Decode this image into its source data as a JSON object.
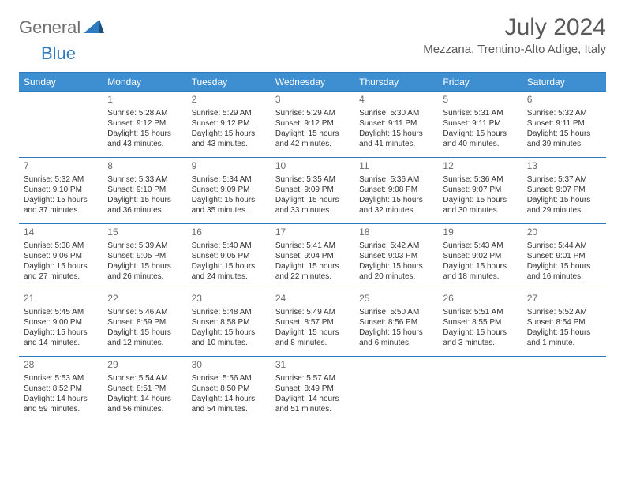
{
  "brand": {
    "part1": "General",
    "part2": "Blue"
  },
  "title": "July 2024",
  "location": "Mezzana, Trentino-Alto Adige, Italy",
  "colors": {
    "header_bg": "#3d8fd1",
    "border": "#2f7bbf",
    "text": "#333333",
    "title": "#5a5a5a",
    "brand_gray": "#6f6f6f",
    "brand_blue": "#2f7bbf",
    "background": "#ffffff"
  },
  "weekdays": [
    "Sunday",
    "Monday",
    "Tuesday",
    "Wednesday",
    "Thursday",
    "Friday",
    "Saturday"
  ],
  "weeks": [
    [
      null,
      {
        "n": "1",
        "sr": "Sunrise: 5:28 AM",
        "ss": "Sunset: 9:12 PM",
        "dl": "Daylight: 15 hours and 43 minutes."
      },
      {
        "n": "2",
        "sr": "Sunrise: 5:29 AM",
        "ss": "Sunset: 9:12 PM",
        "dl": "Daylight: 15 hours and 43 minutes."
      },
      {
        "n": "3",
        "sr": "Sunrise: 5:29 AM",
        "ss": "Sunset: 9:12 PM",
        "dl": "Daylight: 15 hours and 42 minutes."
      },
      {
        "n": "4",
        "sr": "Sunrise: 5:30 AM",
        "ss": "Sunset: 9:11 PM",
        "dl": "Daylight: 15 hours and 41 minutes."
      },
      {
        "n": "5",
        "sr": "Sunrise: 5:31 AM",
        "ss": "Sunset: 9:11 PM",
        "dl": "Daylight: 15 hours and 40 minutes."
      },
      {
        "n": "6",
        "sr": "Sunrise: 5:32 AM",
        "ss": "Sunset: 9:11 PM",
        "dl": "Daylight: 15 hours and 39 minutes."
      }
    ],
    [
      {
        "n": "7",
        "sr": "Sunrise: 5:32 AM",
        "ss": "Sunset: 9:10 PM",
        "dl": "Daylight: 15 hours and 37 minutes."
      },
      {
        "n": "8",
        "sr": "Sunrise: 5:33 AM",
        "ss": "Sunset: 9:10 PM",
        "dl": "Daylight: 15 hours and 36 minutes."
      },
      {
        "n": "9",
        "sr": "Sunrise: 5:34 AM",
        "ss": "Sunset: 9:09 PM",
        "dl": "Daylight: 15 hours and 35 minutes."
      },
      {
        "n": "10",
        "sr": "Sunrise: 5:35 AM",
        "ss": "Sunset: 9:09 PM",
        "dl": "Daylight: 15 hours and 33 minutes."
      },
      {
        "n": "11",
        "sr": "Sunrise: 5:36 AM",
        "ss": "Sunset: 9:08 PM",
        "dl": "Daylight: 15 hours and 32 minutes."
      },
      {
        "n": "12",
        "sr": "Sunrise: 5:36 AM",
        "ss": "Sunset: 9:07 PM",
        "dl": "Daylight: 15 hours and 30 minutes."
      },
      {
        "n": "13",
        "sr": "Sunrise: 5:37 AM",
        "ss": "Sunset: 9:07 PM",
        "dl": "Daylight: 15 hours and 29 minutes."
      }
    ],
    [
      {
        "n": "14",
        "sr": "Sunrise: 5:38 AM",
        "ss": "Sunset: 9:06 PM",
        "dl": "Daylight: 15 hours and 27 minutes."
      },
      {
        "n": "15",
        "sr": "Sunrise: 5:39 AM",
        "ss": "Sunset: 9:05 PM",
        "dl": "Daylight: 15 hours and 26 minutes."
      },
      {
        "n": "16",
        "sr": "Sunrise: 5:40 AM",
        "ss": "Sunset: 9:05 PM",
        "dl": "Daylight: 15 hours and 24 minutes."
      },
      {
        "n": "17",
        "sr": "Sunrise: 5:41 AM",
        "ss": "Sunset: 9:04 PM",
        "dl": "Daylight: 15 hours and 22 minutes."
      },
      {
        "n": "18",
        "sr": "Sunrise: 5:42 AM",
        "ss": "Sunset: 9:03 PM",
        "dl": "Daylight: 15 hours and 20 minutes."
      },
      {
        "n": "19",
        "sr": "Sunrise: 5:43 AM",
        "ss": "Sunset: 9:02 PM",
        "dl": "Daylight: 15 hours and 18 minutes."
      },
      {
        "n": "20",
        "sr": "Sunrise: 5:44 AM",
        "ss": "Sunset: 9:01 PM",
        "dl": "Daylight: 15 hours and 16 minutes."
      }
    ],
    [
      {
        "n": "21",
        "sr": "Sunrise: 5:45 AM",
        "ss": "Sunset: 9:00 PM",
        "dl": "Daylight: 15 hours and 14 minutes."
      },
      {
        "n": "22",
        "sr": "Sunrise: 5:46 AM",
        "ss": "Sunset: 8:59 PM",
        "dl": "Daylight: 15 hours and 12 minutes."
      },
      {
        "n": "23",
        "sr": "Sunrise: 5:48 AM",
        "ss": "Sunset: 8:58 PM",
        "dl": "Daylight: 15 hours and 10 minutes."
      },
      {
        "n": "24",
        "sr": "Sunrise: 5:49 AM",
        "ss": "Sunset: 8:57 PM",
        "dl": "Daylight: 15 hours and 8 minutes."
      },
      {
        "n": "25",
        "sr": "Sunrise: 5:50 AM",
        "ss": "Sunset: 8:56 PM",
        "dl": "Daylight: 15 hours and 6 minutes."
      },
      {
        "n": "26",
        "sr": "Sunrise: 5:51 AM",
        "ss": "Sunset: 8:55 PM",
        "dl": "Daylight: 15 hours and 3 minutes."
      },
      {
        "n": "27",
        "sr": "Sunrise: 5:52 AM",
        "ss": "Sunset: 8:54 PM",
        "dl": "Daylight: 15 hours and 1 minute."
      }
    ],
    [
      {
        "n": "28",
        "sr": "Sunrise: 5:53 AM",
        "ss": "Sunset: 8:52 PM",
        "dl": "Daylight: 14 hours and 59 minutes."
      },
      {
        "n": "29",
        "sr": "Sunrise: 5:54 AM",
        "ss": "Sunset: 8:51 PM",
        "dl": "Daylight: 14 hours and 56 minutes."
      },
      {
        "n": "30",
        "sr": "Sunrise: 5:56 AM",
        "ss": "Sunset: 8:50 PM",
        "dl": "Daylight: 14 hours and 54 minutes."
      },
      {
        "n": "31",
        "sr": "Sunrise: 5:57 AM",
        "ss": "Sunset: 8:49 PM",
        "dl": "Daylight: 14 hours and 51 minutes."
      },
      null,
      null,
      null
    ]
  ]
}
